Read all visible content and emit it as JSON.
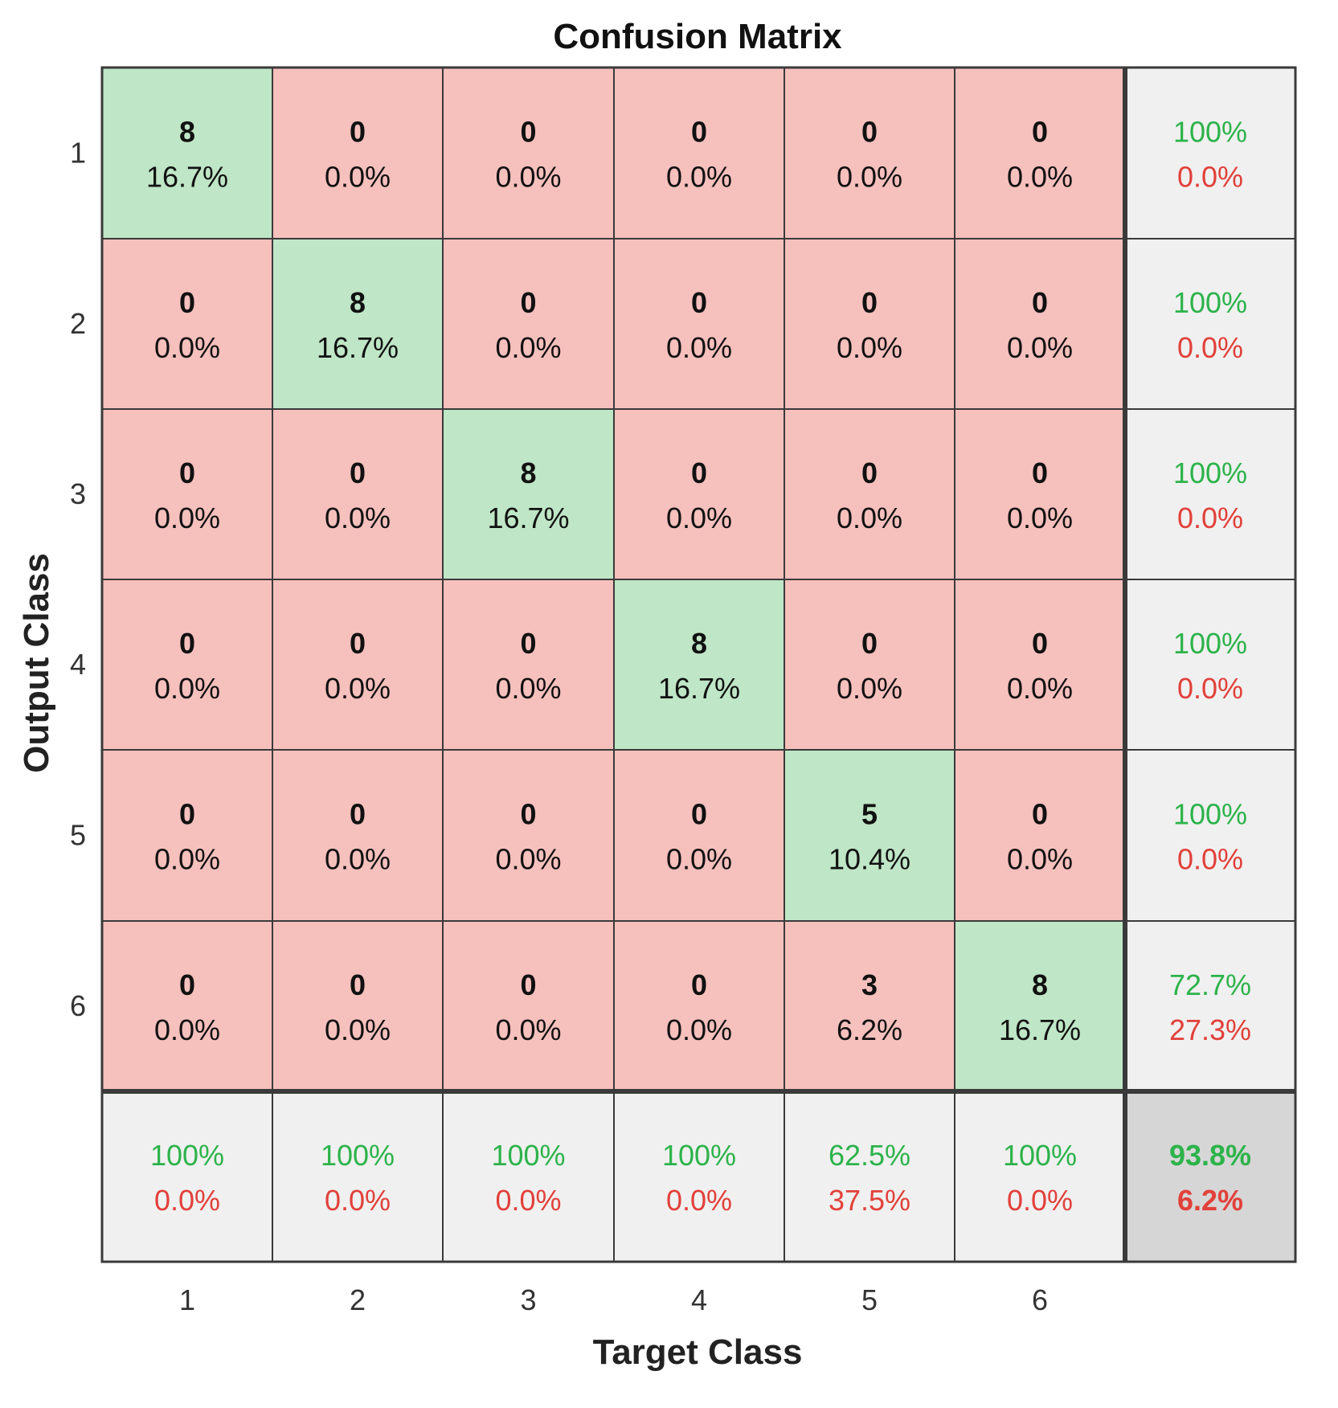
{
  "chart_data": {
    "type": "heatmap",
    "title": "Confusion Matrix",
    "xlabel": "Target Class",
    "ylabel": "Output Class",
    "x_ticks": [
      "1",
      "2",
      "3",
      "4",
      "5",
      "6"
    ],
    "y_ticks": [
      "1",
      "2",
      "3",
      "4",
      "5",
      "6"
    ],
    "counts": [
      [
        8,
        0,
        0,
        0,
        0,
        0
      ],
      [
        0,
        8,
        0,
        0,
        0,
        0
      ],
      [
        0,
        0,
        8,
        0,
        0,
        0
      ],
      [
        0,
        0,
        0,
        8,
        0,
        0
      ],
      [
        0,
        0,
        0,
        0,
        5,
        0
      ],
      [
        0,
        0,
        0,
        0,
        3,
        8
      ]
    ],
    "percents": [
      [
        "16.7%",
        "0.0%",
        "0.0%",
        "0.0%",
        "0.0%",
        "0.0%"
      ],
      [
        "0.0%",
        "16.7%",
        "0.0%",
        "0.0%",
        "0.0%",
        "0.0%"
      ],
      [
        "0.0%",
        "0.0%",
        "16.7%",
        "0.0%",
        "0.0%",
        "0.0%"
      ],
      [
        "0.0%",
        "0.0%",
        "0.0%",
        "16.7%",
        "0.0%",
        "0.0%"
      ],
      [
        "0.0%",
        "0.0%",
        "0.0%",
        "0.0%",
        "10.4%",
        "0.0%"
      ],
      [
        "0.0%",
        "0.0%",
        "0.0%",
        "0.0%",
        "6.2%",
        "16.7%"
      ]
    ],
    "row_summary": [
      {
        "correct": "100%",
        "error": "0.0%"
      },
      {
        "correct": "100%",
        "error": "0.0%"
      },
      {
        "correct": "100%",
        "error": "0.0%"
      },
      {
        "correct": "100%",
        "error": "0.0%"
      },
      {
        "correct": "100%",
        "error": "0.0%"
      },
      {
        "correct": "72.7%",
        "error": "27.3%"
      }
    ],
    "col_summary": [
      {
        "correct": "100%",
        "error": "0.0%"
      },
      {
        "correct": "100%",
        "error": "0.0%"
      },
      {
        "correct": "100%",
        "error": "0.0%"
      },
      {
        "correct": "100%",
        "error": "0.0%"
      },
      {
        "correct": "62.5%",
        "error": "37.5%"
      },
      {
        "correct": "100%",
        "error": "0.0%"
      }
    ],
    "overall": {
      "correct": "93.8%",
      "error": "6.2%"
    }
  },
  "colors": {
    "correct_cell": "#bfe6c6",
    "incorrect_cell": "#f6c0bd",
    "summary_cell": "#f0f0f0",
    "overall_cell": "#d6d6d6",
    "correct_text": "#2cb34a",
    "error_text": "#e2403a",
    "grid": "#3a3a3a"
  }
}
